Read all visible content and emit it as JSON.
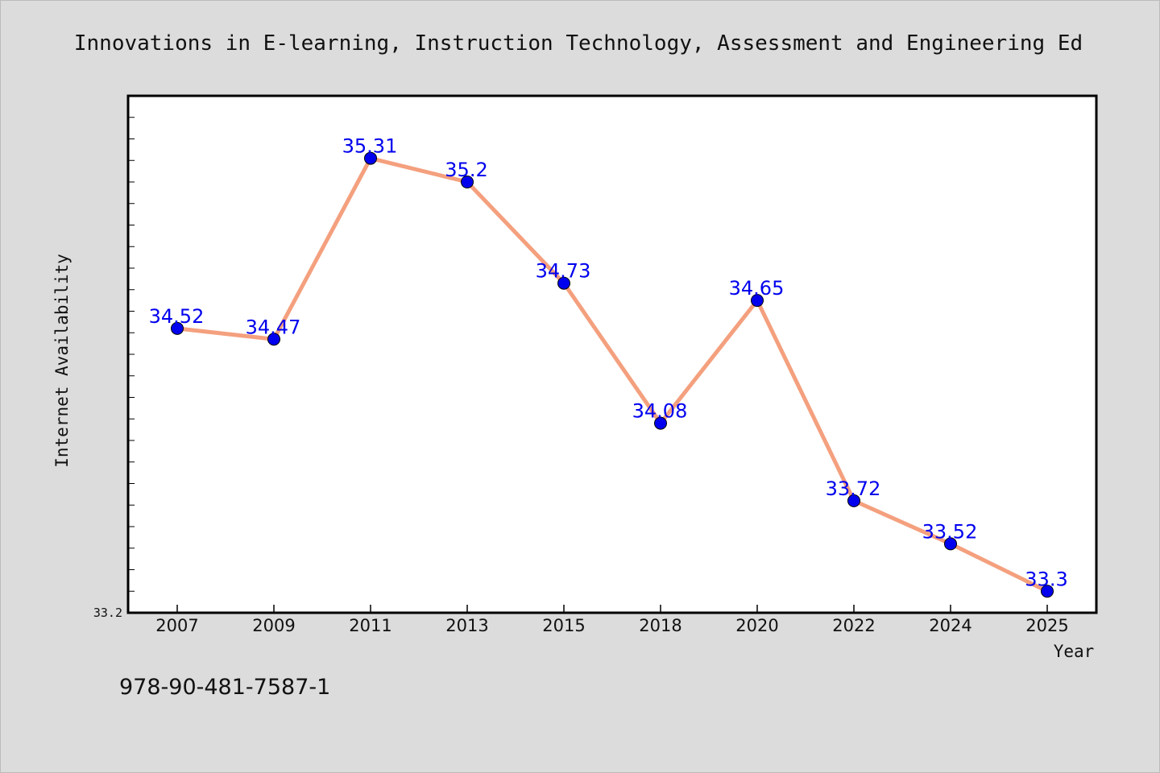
{
  "chart_data": {
    "type": "line",
    "title": "Innovations in E-learning, Instruction Technology, Assessment and Engineering Ed",
    "xlabel": "Year",
    "ylabel": "Internet Availability",
    "categories": [
      "2007",
      "2009",
      "2011",
      "2013",
      "2015",
      "2018",
      "2020",
      "2022",
      "2024",
      "2025"
    ],
    "values": [
      34.52,
      34.47,
      35.31,
      35.2,
      34.73,
      34.08,
      34.65,
      33.72,
      33.52,
      33.3
    ],
    "data_labels": [
      "34.52",
      "34.47",
      "35.31",
      "35.2",
      "34.73",
      "34.08",
      "34.65",
      "33.72",
      "33.52",
      "33.3"
    ],
    "ylim": [
      33.2,
      35.6
    ],
    "ytick_labels": [
      "33.2"
    ],
    "grid": false,
    "line_color": "#f4a07e",
    "marker_color": "#0000ee",
    "label_color": "#0000ee"
  },
  "footer": {
    "isbn": "978-90-481-7587-1"
  }
}
